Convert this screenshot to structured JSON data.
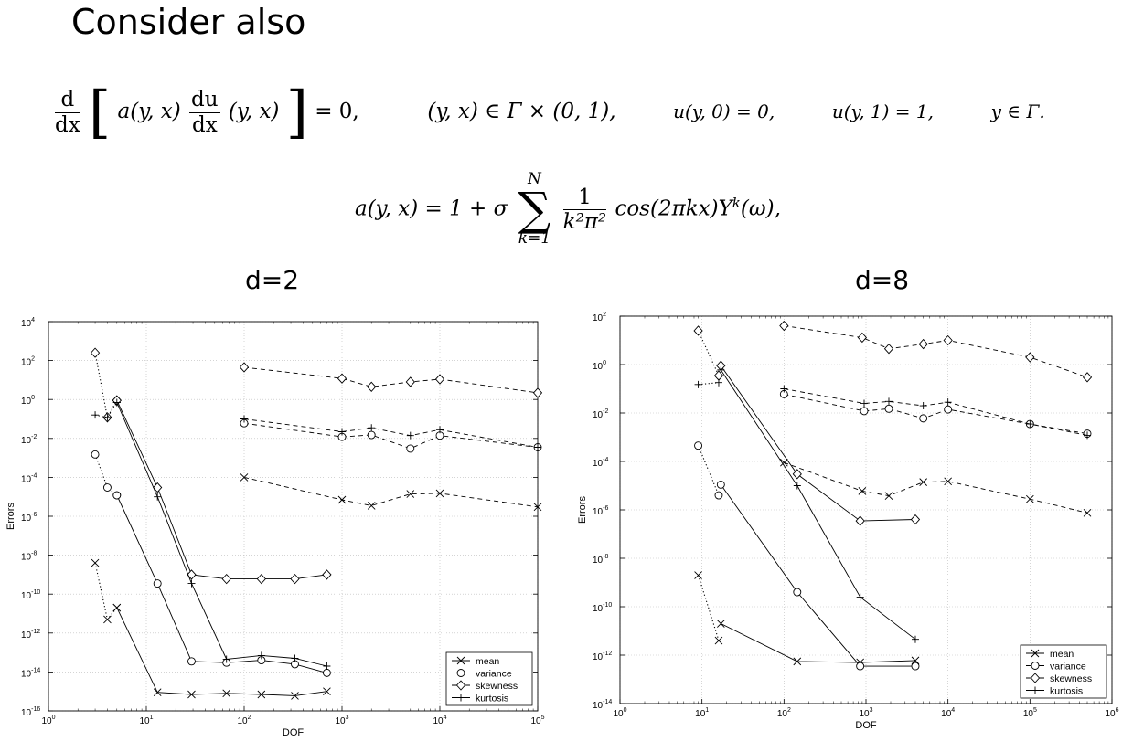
{
  "slide": {
    "title": "Consider also",
    "eq1": {
      "d_num": "d",
      "d_den": "dx",
      "a_term": "a(y, x)",
      "du_num": "du",
      "du_den": "dx",
      "yx": "(y, x)",
      "eq_zero": "= 0,",
      "domain": "(y, x) ∈ Γ × (0, 1),",
      "bc0": "u(y, 0) = 0,",
      "bc1": "u(y, 1) = 1,",
      "ygamma": "y ∈ Γ."
    },
    "eq2": {
      "lhs": "a(y, x) = 1 + σ",
      "sum_top": "N",
      "sum_bottom": "k=1",
      "frac_num": "1",
      "frac_den": "k²π²",
      "rest": "cos(2πkx)Y",
      "sup": "k",
      "tail": "(ω),"
    }
  },
  "chart_data": [
    {
      "type": "line",
      "title": "d=2",
      "xlabel": "DOF",
      "ylabel": "Errors",
      "xscale": "log",
      "yscale": "log",
      "xlim": [
        1,
        100000
      ],
      "ylim": [
        1e-16,
        10000
      ],
      "xticks": [
        {
          "v": 1,
          "b": "10",
          "e": "0"
        },
        {
          "v": 10,
          "b": "10",
          "e": "1"
        },
        {
          "v": 100,
          "b": "10",
          "e": "2"
        },
        {
          "v": 1000,
          "b": "10",
          "e": "3"
        },
        {
          "v": 10000,
          "b": "10",
          "e": "4"
        },
        {
          "v": 100000,
          "b": "10",
          "e": "5"
        }
      ],
      "yticks": [
        {
          "v": 1e-16,
          "b": "10",
          "e": "-16"
        },
        {
          "v": 1e-14,
          "b": "10",
          "e": "-14"
        },
        {
          "v": 1e-12,
          "b": "10",
          "e": "-12"
        },
        {
          "v": 1e-10,
          "b": "10",
          "e": "-10"
        },
        {
          "v": 1e-08,
          "b": "10",
          "e": "-8"
        },
        {
          "v": 1e-06,
          "b": "10",
          "e": "-6"
        },
        {
          "v": 0.0001,
          "b": "10",
          "e": "-4"
        },
        {
          "v": 0.01,
          "b": "10",
          "e": "-2"
        },
        {
          "v": 1,
          "b": "10",
          "e": "0"
        },
        {
          "v": 100,
          "b": "10",
          "e": "2"
        },
        {
          "v": 10000,
          "b": "10",
          "e": "4"
        }
      ],
      "grid": true,
      "legend": {
        "position": "bottom-right",
        "entries": [
          "mean",
          "variance",
          "skewness",
          "kurtosis"
        ]
      },
      "lines": [
        {
          "series": "mean",
          "style": "dotted",
          "points": [
            [
              3,
              4e-09
            ],
            [
              4,
              5e-12
            ],
            [
              5,
              2e-11
            ]
          ]
        },
        {
          "series": "variance",
          "style": "dotted",
          "points": [
            [
              3,
              0.0015
            ],
            [
              4,
              3e-05
            ],
            [
              5,
              1.2e-05
            ]
          ]
        },
        {
          "series": "skewness",
          "style": "dotted",
          "points": [
            [
              3,
              250
            ],
            [
              4,
              0.12
            ],
            [
              5,
              0.9
            ]
          ]
        },
        {
          "series": "kurtosis",
          "style": "dotted",
          "points": [
            [
              3,
              0.16
            ],
            [
              4,
              0.12
            ],
            [
              5,
              0.7
            ]
          ]
        },
        {
          "series": "mean",
          "style": "solid",
          "points": [
            [
              5,
              2e-11
            ],
            [
              13,
              9e-16
            ],
            [
              29,
              7e-16
            ],
            [
              66,
              8e-16
            ],
            [
              150,
              7e-16
            ],
            [
              330,
              6e-16
            ],
            [
              700,
              1e-15
            ]
          ]
        },
        {
          "series": "variance",
          "style": "solid",
          "points": [
            [
              5,
              1.2e-05
            ],
            [
              13,
              3.5e-10
            ],
            [
              29,
              3.5e-14
            ],
            [
              66,
              3e-14
            ],
            [
              150,
              4e-14
            ],
            [
              330,
              2.5e-14
            ],
            [
              700,
              9e-15
            ]
          ]
        },
        {
          "series": "skewness",
          "style": "solid",
          "points": [
            [
              5,
              0.9
            ],
            [
              13,
              3e-05
            ],
            [
              29,
              1e-09
            ],
            [
              66,
              6e-10
            ],
            [
              150,
              6e-10
            ],
            [
              330,
              6e-10
            ],
            [
              700,
              1e-09
            ]
          ]
        },
        {
          "series": "kurtosis",
          "style": "solid",
          "points": [
            [
              5,
              0.7
            ],
            [
              13,
              1e-05
            ],
            [
              29,
              3.5e-10
            ],
            [
              66,
              4.5e-14
            ],
            [
              150,
              7e-14
            ],
            [
              330,
              5e-14
            ],
            [
              700,
              2e-14
            ]
          ]
        },
        {
          "series": "mean",
          "style": "dashed",
          "points": [
            [
              100,
              0.0001
            ],
            [
              1000,
              7e-06
            ],
            [
              2000,
              3.5e-06
            ],
            [
              5000,
              1.4e-05
            ],
            [
              10000,
              1.5e-05
            ],
            [
              100000,
              3e-06
            ]
          ]
        },
        {
          "series": "variance",
          "style": "dashed",
          "points": [
            [
              100,
              0.06
            ],
            [
              1000,
              0.012
            ],
            [
              2000,
              0.015
            ],
            [
              5000,
              0.003
            ],
            [
              10000,
              0.014
            ],
            [
              100000,
              0.0035
            ]
          ]
        },
        {
          "series": "skewness",
          "style": "dashed",
          "points": [
            [
              100,
              45
            ],
            [
              1000,
              12
            ],
            [
              2000,
              4.5
            ],
            [
              5000,
              8
            ],
            [
              10000,
              11
            ],
            [
              100000,
              2.2
            ]
          ]
        },
        {
          "series": "kurtosis",
          "style": "dashed",
          "points": [
            [
              100,
              0.1
            ],
            [
              1000,
              0.022
            ],
            [
              2000,
              0.035
            ],
            [
              5000,
              0.014
            ],
            [
              10000,
              0.028
            ],
            [
              100000,
              0.0035
            ]
          ]
        }
      ]
    },
    {
      "type": "line",
      "title": "d=8",
      "xlabel": "DOF",
      "ylabel": "Errors",
      "xscale": "log",
      "yscale": "log",
      "xlim": [
        1,
        1000000
      ],
      "ylim": [
        1e-14,
        100
      ],
      "xticks": [
        {
          "v": 1,
          "b": "10",
          "e": "0"
        },
        {
          "v": 10,
          "b": "10",
          "e": "1"
        },
        {
          "v": 100,
          "b": "10",
          "e": "2"
        },
        {
          "v": 1000,
          "b": "10",
          "e": "3"
        },
        {
          "v": 10000,
          "b": "10",
          "e": "4"
        },
        {
          "v": 100000,
          "b": "10",
          "e": "5"
        },
        {
          "v": 1000000,
          "b": "10",
          "e": "6"
        }
      ],
      "yticks": [
        {
          "v": 1e-14,
          "b": "10",
          "e": "-14"
        },
        {
          "v": 1e-12,
          "b": "10",
          "e": "-12"
        },
        {
          "v": 1e-10,
          "b": "10",
          "e": "-10"
        },
        {
          "v": 1e-08,
          "b": "10",
          "e": "-8"
        },
        {
          "v": 1e-06,
          "b": "10",
          "e": "-6"
        },
        {
          "v": 0.0001,
          "b": "10",
          "e": "-4"
        },
        {
          "v": 0.01,
          "b": "10",
          "e": "-2"
        },
        {
          "v": 1,
          "b": "10",
          "e": "0"
        },
        {
          "v": 100,
          "b": "10",
          "e": "2"
        }
      ],
      "grid": true,
      "legend": {
        "position": "bottom-right",
        "entries": [
          "mean",
          "variance",
          "skewness",
          "kurtosis"
        ]
      },
      "lines": [
        {
          "series": "mean",
          "style": "dotted",
          "points": [
            [
              9,
              2e-09
            ],
            [
              16,
              4e-12
            ]
          ]
        },
        {
          "series": "variance",
          "style": "dotted",
          "points": [
            [
              9,
              0.00045
            ],
            [
              16,
              4e-06
            ]
          ]
        },
        {
          "series": "skewness",
          "style": "dotted",
          "points": [
            [
              9,
              25
            ],
            [
              16,
              0.35
            ]
          ]
        },
        {
          "series": "kurtosis",
          "style": "dotted",
          "points": [
            [
              9,
              0.15
            ],
            [
              16,
              0.18
            ]
          ]
        },
        {
          "series": "mean",
          "style": "solid",
          "points": [
            [
              17,
              2e-11
            ],
            [
              145,
              5.5e-13
            ],
            [
              850,
              5e-13
            ],
            [
              4000,
              6e-13
            ]
          ]
        },
        {
          "series": "variance",
          "style": "solid",
          "points": [
            [
              17,
              1.1e-05
            ],
            [
              145,
              4e-10
            ],
            [
              850,
              3.5e-13
            ],
            [
              4000,
              3.5e-13
            ]
          ]
        },
        {
          "series": "skewness",
          "style": "solid",
          "points": [
            [
              17,
              0.9
            ],
            [
              145,
              3e-05
            ],
            [
              850,
              3.5e-07
            ],
            [
              4000,
              4e-07
            ]
          ]
        },
        {
          "series": "kurtosis",
          "style": "solid",
          "points": [
            [
              17,
              0.6
            ],
            [
              145,
              1e-05
            ],
            [
              850,
              2.5e-10
            ],
            [
              4000,
              4.5e-12
            ]
          ]
        },
        {
          "series": "mean",
          "style": "dashed",
          "points": [
            [
              100,
              9e-05
            ],
            [
              900,
              6e-06
            ],
            [
              1900,
              3.8e-06
            ],
            [
              5000,
              1.4e-05
            ],
            [
              10000,
              1.5e-05
            ],
            [
              100000,
              2.8e-06
            ],
            [
              500000,
              7.5e-07
            ]
          ]
        },
        {
          "series": "variance",
          "style": "dashed",
          "points": [
            [
              100,
              0.06
            ],
            [
              950,
              0.012
            ],
            [
              1900,
              0.015
            ],
            [
              5000,
              0.006
            ],
            [
              10000,
              0.014
            ],
            [
              100000,
              0.0035
            ],
            [
              500000,
              0.0014
            ]
          ]
        },
        {
          "series": "skewness",
          "style": "dashed",
          "points": [
            [
              100,
              40
            ],
            [
              900,
              13
            ],
            [
              1900,
              4.5
            ],
            [
              5000,
              7
            ],
            [
              10000,
              10
            ],
            [
              100000,
              2
            ],
            [
              500000,
              0.3
            ]
          ]
        },
        {
          "series": "kurtosis",
          "style": "dashed",
          "points": [
            [
              100,
              0.1
            ],
            [
              950,
              0.025
            ],
            [
              1900,
              0.03
            ],
            [
              5000,
              0.02
            ],
            [
              10000,
              0.028
            ],
            [
              100000,
              0.0035
            ],
            [
              500000,
              0.0012
            ]
          ]
        }
      ]
    }
  ]
}
